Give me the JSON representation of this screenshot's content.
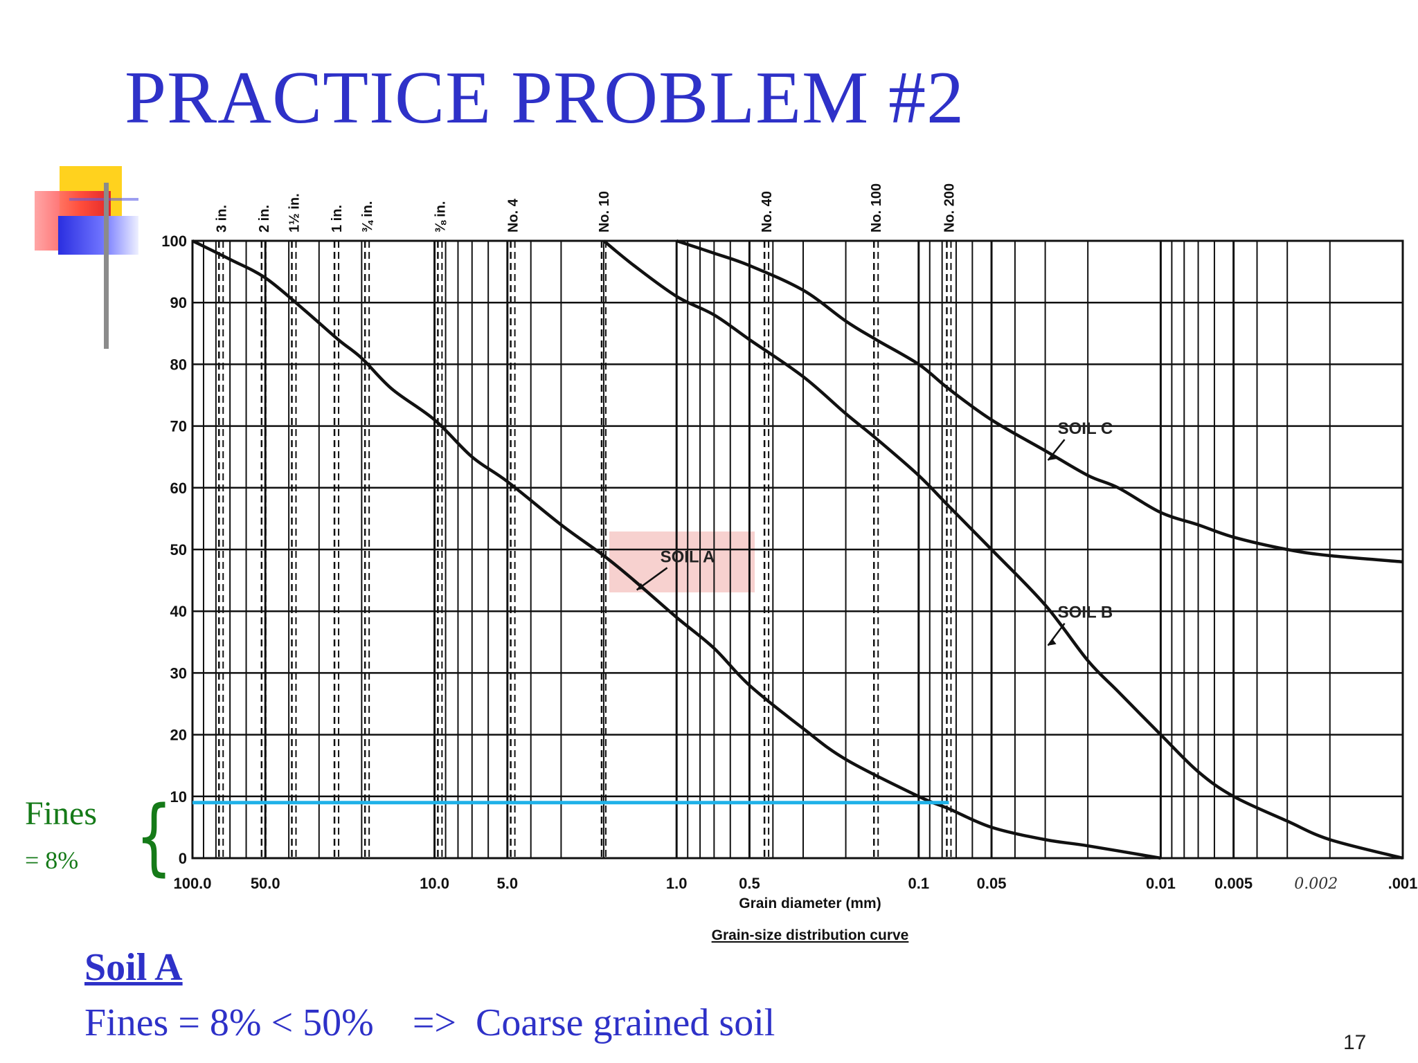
{
  "slide": {
    "title": "PRACTICE PROBLEM #2",
    "fines_label": "Fines",
    "fines_value": "= 8%",
    "soil_heading": "Soil A",
    "conclusion": "Fines = 8% < 50%    =>  Coarse grained soil",
    "page_number": "17"
  },
  "colors": {
    "title": "#2e31c8",
    "fines_text": "#157a18",
    "fines_line": "#1fb1e8",
    "highlight": "#f6c9c7",
    "curve": "#111111"
  },
  "chart_data": {
    "type": "line",
    "title": "Grain-size distribution curve",
    "xlabel": "Grain diameter (mm)",
    "ylabel": "",
    "x_scale": "log",
    "x_direction": "decreasing",
    "xlim": [
      100.0,
      0.001
    ],
    "ylim": [
      0,
      100
    ],
    "y_ticks": [
      0,
      10,
      20,
      30,
      40,
      50,
      60,
      70,
      80,
      90,
      100
    ],
    "y_tick_labels": [
      "0",
      "10",
      "20",
      "30",
      "40",
      "50",
      "60",
      "70",
      "80",
      "90",
      "100"
    ],
    "x_ticks": [
      {
        "value": 100.0,
        "label": "100.0"
      },
      {
        "value": 50.0,
        "label": "50.0"
      },
      {
        "value": 10.0,
        "label": "10.0"
      },
      {
        "value": 5.0,
        "label": "5.0"
      },
      {
        "value": 1.0,
        "label": "1.0"
      },
      {
        "value": 0.5,
        "label": "0.5"
      },
      {
        "value": 0.1,
        "label": "0.1"
      },
      {
        "value": 0.05,
        "label": "0.05"
      },
      {
        "value": 0.01,
        "label": "0.01"
      },
      {
        "value": 0.005,
        "label": "0.005"
      },
      {
        "value": 0.001,
        "label": ".001"
      }
    ],
    "handwritten_tick": {
      "value": 0.002,
      "label": "0.002"
    },
    "sieves": [
      {
        "label": "3 in.",
        "size": 76.2
      },
      {
        "label": "2 in.",
        "size": 50.8
      },
      {
        "label": "1½ in.",
        "size": 38.1
      },
      {
        "label": "1 in.",
        "size": 25.4
      },
      {
        "label": "¾ in.",
        "size": 19.0
      },
      {
        "label": "⅜ in.",
        "size": 9.5
      },
      {
        "label": "No. 4",
        "size": 4.75
      },
      {
        "label": "No. 10",
        "size": 2.0
      },
      {
        "label": "No. 40",
        "size": 0.425
      },
      {
        "label": "No. 100",
        "size": 0.15
      },
      {
        "label": "No. 200",
        "size": 0.075
      }
    ],
    "series": [
      {
        "name": "SOIL A",
        "points": [
          [
            100,
            100
          ],
          [
            70,
            97
          ],
          [
            50,
            94
          ],
          [
            35,
            89
          ],
          [
            25,
            84
          ],
          [
            20,
            81
          ],
          [
            15,
            76
          ],
          [
            10,
            71
          ],
          [
            7,
            65
          ],
          [
            5,
            61
          ],
          [
            3,
            54
          ],
          [
            2,
            49
          ],
          [
            1.5,
            45
          ],
          [
            1,
            39
          ],
          [
            0.7,
            34
          ],
          [
            0.5,
            28
          ],
          [
            0.3,
            21
          ],
          [
            0.2,
            16
          ],
          [
            0.1,
            10
          ],
          [
            0.075,
            8
          ],
          [
            0.05,
            5
          ],
          [
            0.03,
            3
          ],
          [
            0.02,
            2
          ],
          [
            0.01,
            0
          ]
        ]
      },
      {
        "name": "SOIL B",
        "points": [
          [
            2,
            100
          ],
          [
            1.5,
            96
          ],
          [
            1,
            91
          ],
          [
            0.7,
            88
          ],
          [
            0.5,
            84
          ],
          [
            0.3,
            78
          ],
          [
            0.2,
            72
          ],
          [
            0.15,
            68
          ],
          [
            0.1,
            62
          ],
          [
            0.075,
            57
          ],
          [
            0.05,
            50
          ],
          [
            0.03,
            41
          ],
          [
            0.02,
            32
          ],
          [
            0.015,
            27
          ],
          [
            0.01,
            20
          ],
          [
            0.007,
            14
          ],
          [
            0.005,
            10
          ],
          [
            0.003,
            6
          ],
          [
            0.002,
            3
          ],
          [
            0.001,
            0
          ]
        ]
      },
      {
        "name": "SOIL C",
        "points": [
          [
            1,
            100
          ],
          [
            0.7,
            98
          ],
          [
            0.5,
            96
          ],
          [
            0.3,
            92
          ],
          [
            0.2,
            87
          ],
          [
            0.15,
            84
          ],
          [
            0.1,
            80
          ],
          [
            0.075,
            76
          ],
          [
            0.05,
            71
          ],
          [
            0.03,
            66
          ],
          [
            0.02,
            62
          ],
          [
            0.015,
            60
          ],
          [
            0.01,
            56
          ],
          [
            0.007,
            54
          ],
          [
            0.005,
            52
          ],
          [
            0.003,
            50
          ],
          [
            0.002,
            49
          ],
          [
            0.001,
            48
          ]
        ]
      }
    ],
    "annotations": [
      {
        "text": "SOIL A",
        "target": [
          1.5,
          43
        ]
      },
      {
        "text": "SOIL B",
        "target": [
          0.03,
          34
        ]
      },
      {
        "text": "SOIL C",
        "target": [
          0.03,
          64
        ]
      }
    ],
    "fines_line": {
      "y": 9,
      "x_from": 100,
      "x_to": 0.075
    }
  }
}
